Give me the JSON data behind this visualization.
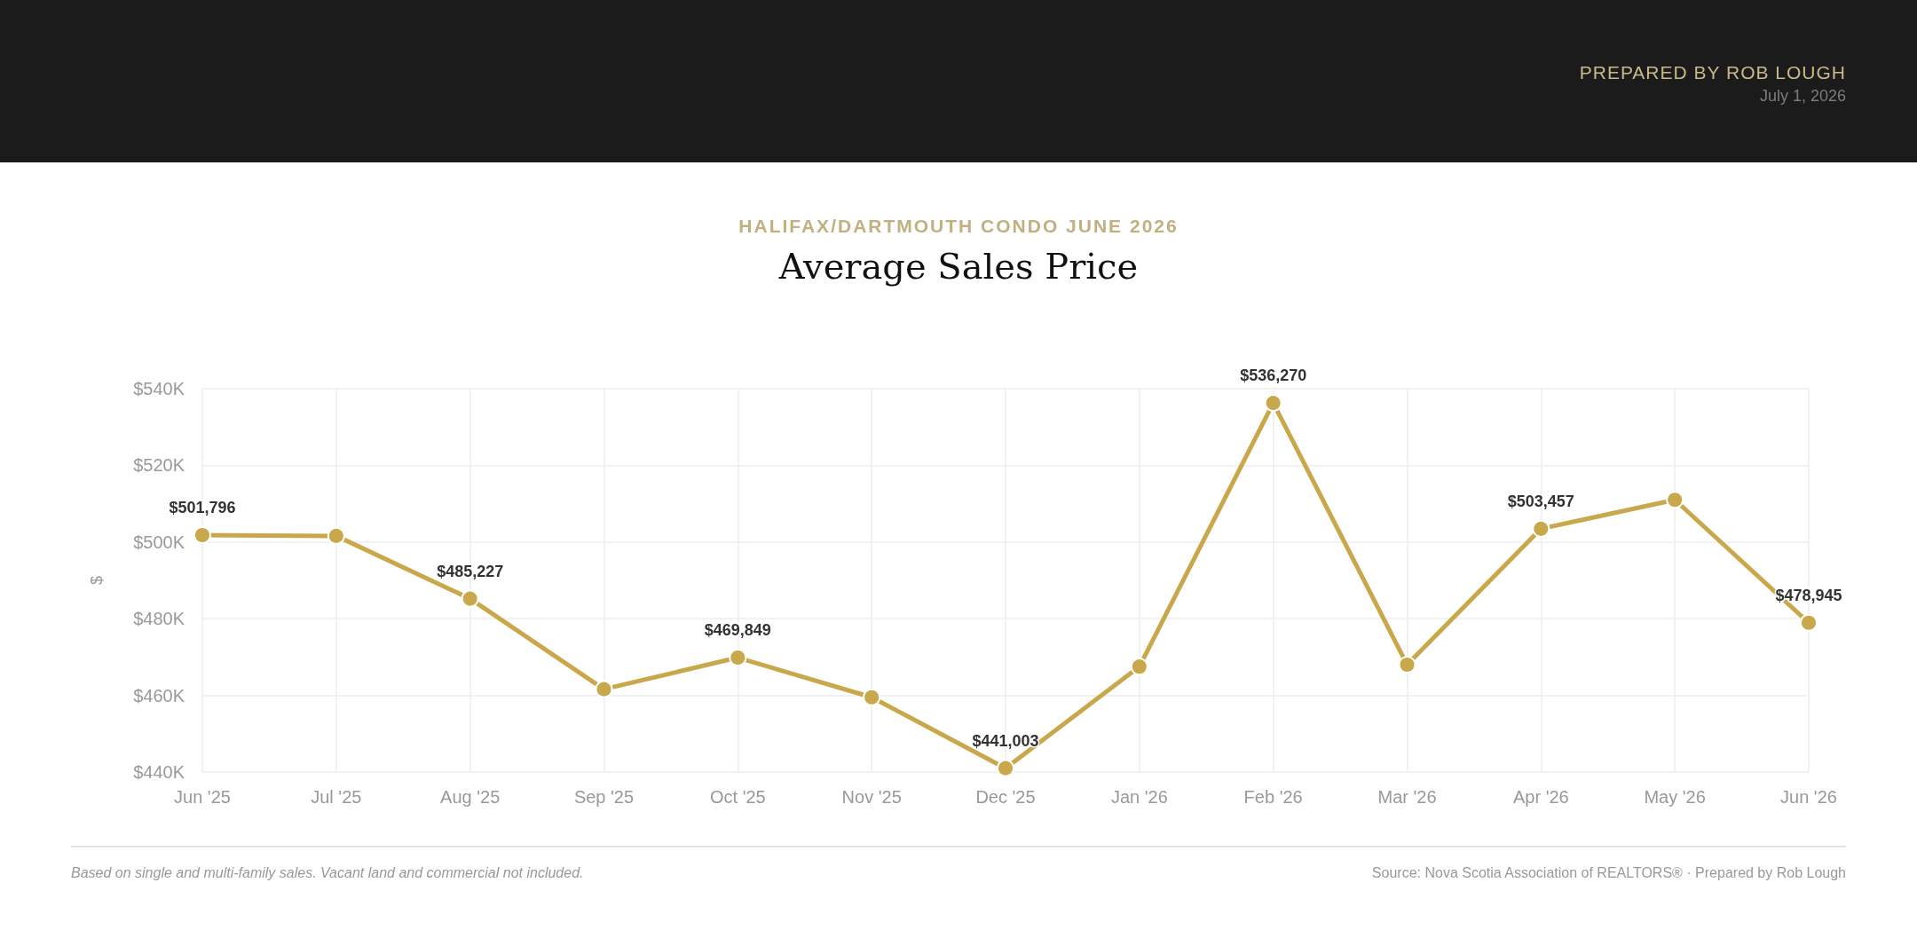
{
  "chart_data": {
    "type": "line",
    "subtitle": "HALIFAX/DARTMOUTH CONDO JUNE 2026",
    "title": "Average Sales Price",
    "ylabel": "$",
    "annotations": [
      "PREPARED BY ROB LOUGH",
      "July 1, 2026",
      "Based on single and multi-family sales. Vacant land and commercial not included.",
      "Source: Nova Scotia Association of REALTORS® · Prepared by Rob Lough"
    ],
    "categories": [
      "Jun '25",
      "Jul '25",
      "Aug '25",
      "Sep '25",
      "Oct '25",
      "Nov '25",
      "Dec '25",
      "Jan '26",
      "Feb '26",
      "Mar '26",
      "Apr '26",
      "May '26",
      "Jun '26"
    ],
    "series": [
      {
        "color": "#c9a84c",
        "values": [
          501796,
          501600,
          485227,
          461600,
          469849,
          459500,
          441003,
          467500,
          536270,
          468000,
          503457,
          511000,
          478945
        ],
        "value_labels": [
          "$501,796",
          null,
          "$485,227",
          null,
          "$469,849",
          null,
          "$441,003",
          null,
          "$536,270",
          null,
          "$503,457",
          null,
          "$478,945"
        ]
      }
    ],
    "ylim": [
      440000,
      540000
    ],
    "yticks": [
      {
        "value": 440000,
        "label": "$440K"
      },
      {
        "value": 460000,
        "label": "$460K"
      },
      {
        "value": 480000,
        "label": "$480K"
      },
      {
        "value": 500000,
        "label": "$500K"
      },
      {
        "value": 520000,
        "label": "$520K"
      },
      {
        "value": 540000,
        "label": "$540K"
      }
    ],
    "grid": true,
    "marker": "circle",
    "line_style": "solid"
  }
}
